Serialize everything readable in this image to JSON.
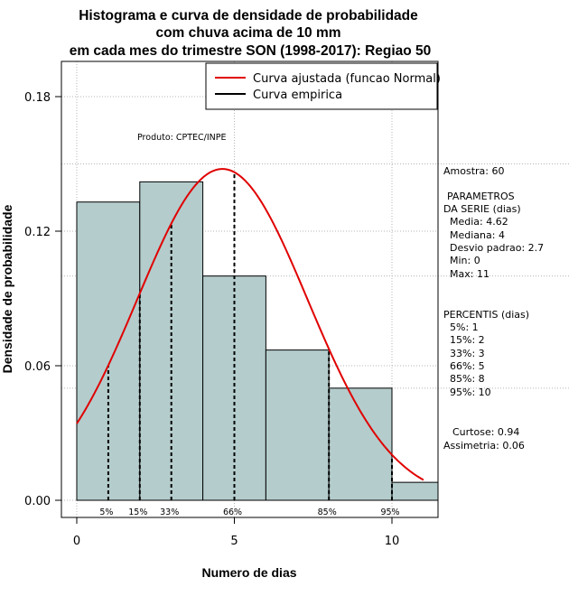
{
  "chart_data": {
    "type": "bar",
    "title_lines": [
      "Histograma e curva de densidade de probabilidade",
      "com chuva acima de 10 mm",
      "em cada mes do trimestre SON (1998-2017): Regiao 50"
    ],
    "xlabel": "Numero de dias",
    "ylabel": "Densidade de probabilidade",
    "xlim": [
      -0.5,
      11.5
    ],
    "ylim": [
      0,
      0.19
    ],
    "x_ticks": [
      0,
      5,
      10
    ],
    "y_ticks": [
      0.0,
      0.06,
      0.12,
      0.18
    ],
    "y_tick_labels": [
      "0.00",
      "0.06",
      "0.12",
      "0.18"
    ],
    "bins": [
      {
        "from": 0,
        "to": 2,
        "density": 0.133
      },
      {
        "from": 2,
        "to": 4,
        "density": 0.142
      },
      {
        "from": 4,
        "to": 6,
        "density": 0.1
      },
      {
        "from": 6,
        "to": 8,
        "density": 0.067
      },
      {
        "from": 8,
        "to": 10,
        "density": 0.05
      },
      {
        "from": 10,
        "to": 11.5,
        "density": 0.008
      }
    ],
    "normal_fit": {
      "mean": 4.62,
      "sd": 2.7,
      "x_from": 0,
      "x_to": 11
    },
    "percentile_lines": [
      {
        "label": "5%",
        "x": 1
      },
      {
        "label": "15%",
        "x": 2
      },
      {
        "label": "33%",
        "x": 3
      },
      {
        "label": "66%",
        "x": 5
      },
      {
        "label": "85%",
        "x": 8
      },
      {
        "label": "95%",
        "x": 10
      }
    ],
    "legend": [
      {
        "label": "Curva ajustada (funcao Normal)",
        "color": "#e00000"
      },
      {
        "label": "Curva empirica",
        "color": "#000000"
      }
    ],
    "legend_position": "top-right",
    "grid": true,
    "colors": {
      "bar_fill": "#b4cccc",
      "curve": "#e00000"
    },
    "product_label": "Produto: CPTEC/INPE"
  },
  "side_stats": {
    "amostra": "Amostra: 60",
    "param_title_1": "PARAMETROS",
    "param_title_2": "DA SERIE (dias)",
    "params": [
      "Media: 4.62",
      "Mediana: 4",
      "Desvio padrao: 2.7",
      "Min: 0",
      "Max: 11"
    ],
    "perc_title": "PERCENTIS (dias)",
    "percentis": [
      "5%: 1",
      "15%: 2",
      "33%: 3",
      "66%: 5",
      "85%: 8",
      "95%: 10"
    ],
    "curtose": "Curtose: 0.94",
    "assimetria": "Assimetria: 0.06"
  }
}
